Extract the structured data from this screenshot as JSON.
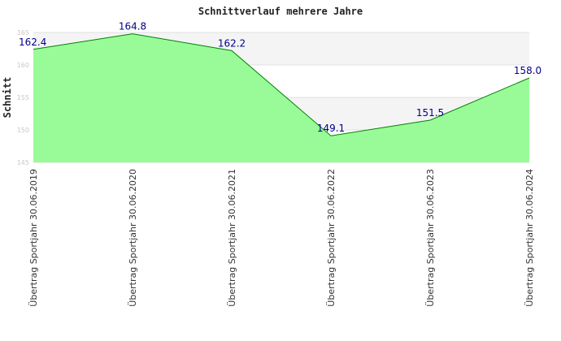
{
  "chart_data": {
    "type": "area",
    "title": "Schnittverlauf mehrere Jahre",
    "ylabel": "Schnitt",
    "xlabel": "",
    "categories": [
      "Übertrag Sportjahr 30.06.2019",
      "Übertrag Sportjahr 30.06.2020",
      "Übertrag Sportjahr 30.06.2021",
      "Übertrag Sportjahr 30.06.2022",
      "Übertrag Sportjahr 30.06.2023",
      "Übertrag Sportjahr 30.06.2024"
    ],
    "values": [
      162.4,
      164.8,
      162.2,
      149.1,
      151.5,
      158.0
    ],
    "data_labels": [
      "162.4",
      "164.8",
      "162.2",
      "149.1",
      "151.5",
      "158.0"
    ],
    "ylim": [
      145,
      165
    ],
    "yticks": [
      145,
      150,
      155,
      160,
      165
    ],
    "grid": true,
    "band_colors": [
      "#f4f4f4",
      "#ffffff"
    ],
    "fill_color": "#98fb98",
    "line_color": "#008000",
    "label_color": "#00008b"
  }
}
